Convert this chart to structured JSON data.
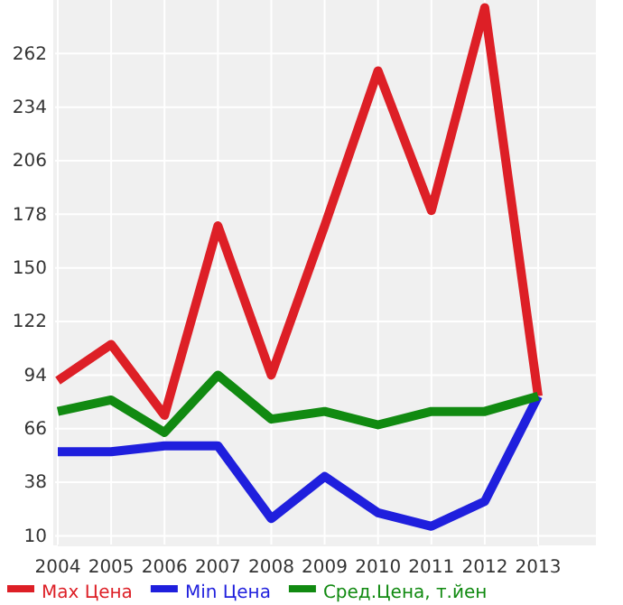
{
  "chart_data": {
    "type": "line",
    "categories": [
      "2004",
      "2005",
      "2006",
      "2007",
      "2008",
      "2009",
      "2010",
      "2011",
      "2012",
      "2013"
    ],
    "series": [
      {
        "name": "Max Цена",
        "color": "#dd1f26",
        "values": [
          91,
          110,
          73,
          172,
          94,
          172,
          253,
          180,
          286,
          83
        ]
      },
      {
        "name": "Min Цена",
        "color": "#1f1fdd",
        "values": [
          54,
          54,
          57,
          57,
          19,
          41,
          22,
          15,
          28,
          83
        ]
      },
      {
        "name": "Сред.Цена, т.йен",
        "color": "#118a11",
        "values": [
          75,
          81,
          64,
          94,
          71,
          75,
          68,
          75,
          75,
          83
        ]
      }
    ],
    "ylim": [
      5,
      290
    ],
    "yticks": [
      10,
      38,
      66,
      94,
      122,
      150,
      178,
      206,
      234,
      262
    ],
    "grid": true,
    "legend": "bottom",
    "marker": "none",
    "line_style": "solid"
  }
}
